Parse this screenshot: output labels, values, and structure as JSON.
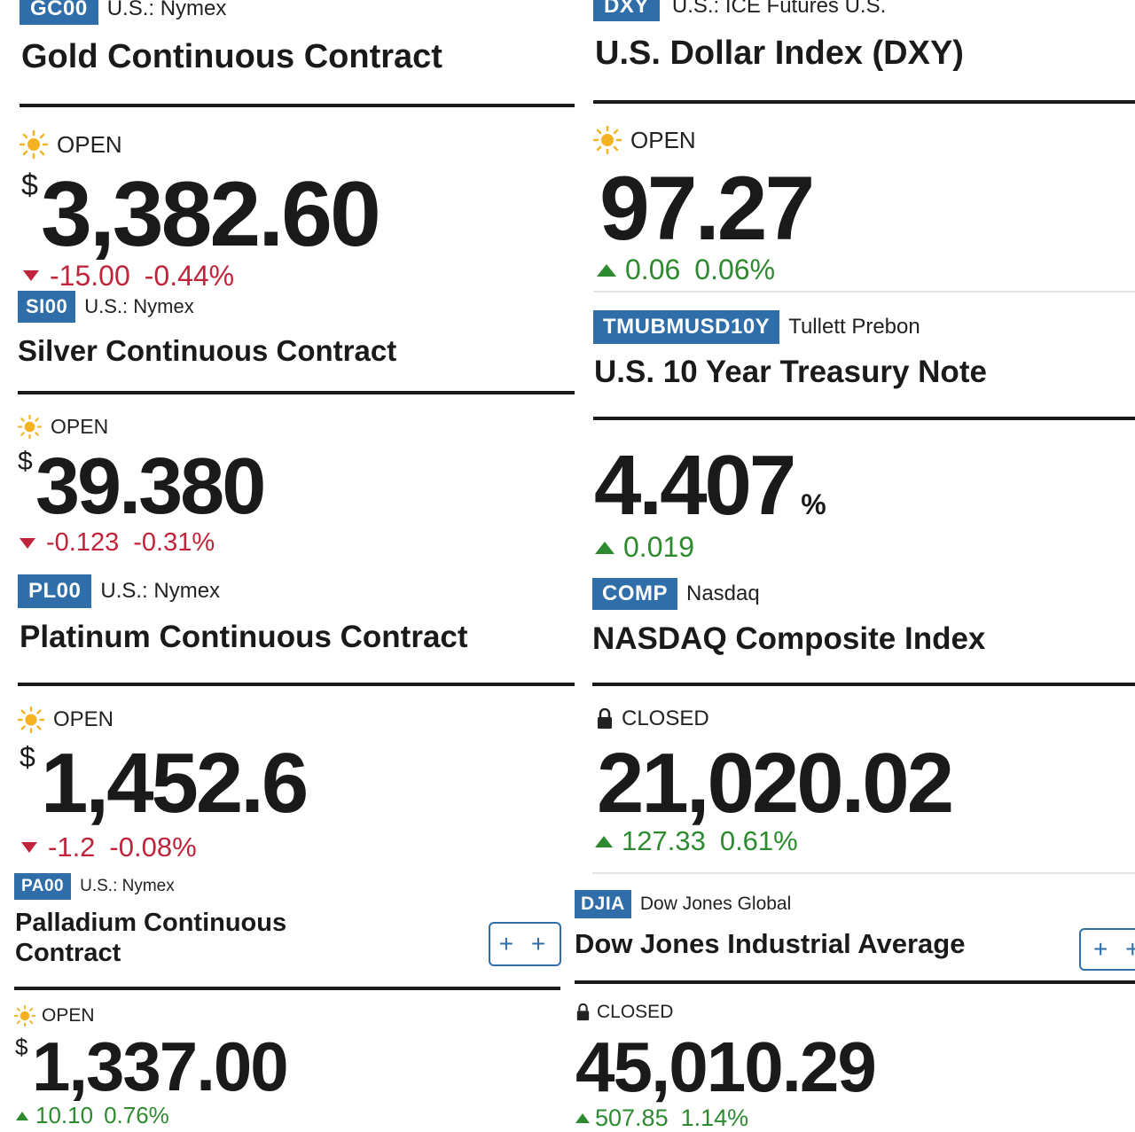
{
  "colors": {
    "tag_bg": "#2f6ea8",
    "down": "#c0243a",
    "up": "#2e8a2e",
    "sun": "#f5b324"
  },
  "icons": {
    "open": "sun-icon",
    "closed": "lock-icon",
    "up": "triangle-up-icon",
    "down": "triangle-down-icon"
  },
  "left": [
    {
      "symbol": "GC00",
      "exchange": "U.S.: Nymex",
      "name": "Gold Continuous Contract",
      "status": "OPEN",
      "currency": "$",
      "price": "3,382.60",
      "change": "-15.00",
      "change_pct": "-0.44%",
      "direction": "down"
    },
    {
      "symbol": "SI00",
      "exchange": "U.S.: Nymex",
      "name": "Silver Continuous Contract",
      "status": "OPEN",
      "currency": "$",
      "price": "39.380",
      "change": "-0.123",
      "change_pct": "-0.31%",
      "direction": "down"
    },
    {
      "symbol": "PL00",
      "exchange": "U.S.: Nymex",
      "name": "Platinum Continuous Contract",
      "status": "OPEN",
      "currency": "$",
      "price": "1,452.6",
      "change": "-1.2",
      "change_pct": "-0.08%",
      "direction": "down"
    },
    {
      "symbol": "PA00",
      "exchange": "U.S.: Nymex",
      "name": "Palladium Continuous Contract",
      "status": "OPEN",
      "currency": "$",
      "price": "1,337.00",
      "change": "10.10",
      "change_pct": "0.76%",
      "direction": "up",
      "add_label": "+ +"
    }
  ],
  "right": [
    {
      "symbol": "DXY",
      "exchange": "U.S.: ICE Futures U.S.",
      "name": "U.S. Dollar Index (DXY)",
      "status": "OPEN",
      "price": "97.27",
      "change": "0.06",
      "change_pct": "0.06%",
      "direction": "up"
    },
    {
      "symbol": "TMUBMUSD10Y",
      "exchange": "Tullett Prebon",
      "name": "U.S. 10 Year Treasury Note",
      "price": "4.407",
      "unit": "%",
      "change": "0.019",
      "direction": "up"
    },
    {
      "symbol": "COMP",
      "exchange": "Nasdaq",
      "name": "NASDAQ Composite Index",
      "status": "CLOSED",
      "price": "21,020.02",
      "change": "127.33",
      "change_pct": "0.61%",
      "direction": "up"
    },
    {
      "symbol": "DJIA",
      "exchange": "Dow Jones Global",
      "name": "Dow Jones Industrial Average",
      "status": "CLOSED",
      "price": "45,010.29",
      "change": "507.85",
      "change_pct": "1.14%",
      "direction": "up",
      "add_label": "+ +"
    }
  ]
}
